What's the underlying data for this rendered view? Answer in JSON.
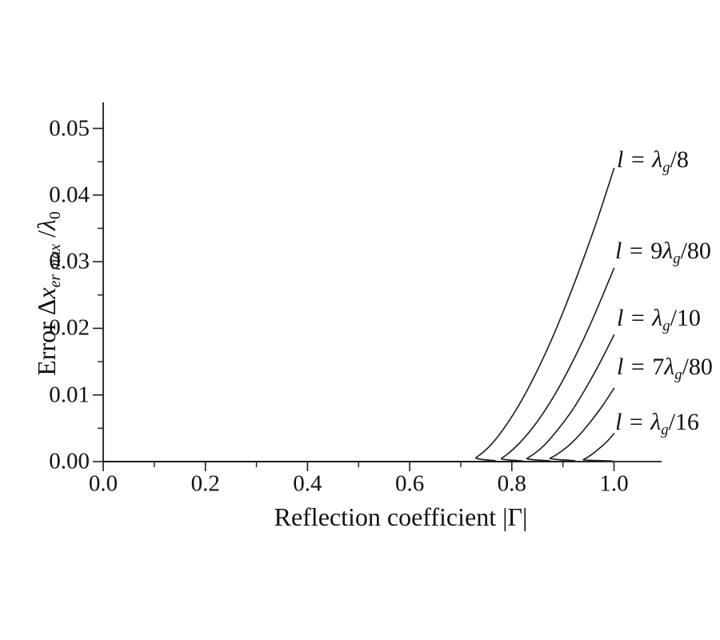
{
  "figure": {
    "background": "#ffffff",
    "line_color": "#1c1c1c"
  },
  "chart_data": {
    "type": "line",
    "title": "",
    "xlabel": "Reflection coefficient |Γ|",
    "ylabel": "Error Δx er max /λ 0",
    "ylabel_parts": {
      "prefix": "Error Δ",
      "var": "x",
      "subscript": "er max",
      "divider": " /",
      "lambda": "λ",
      "lambda_sub": "0"
    },
    "xlim": [
      0,
      1.093
    ],
    "ylim": [
      0,
      0.0539
    ],
    "grid": "off",
    "legend_position": "labels-at-line-ends-right",
    "x_ticks": {
      "major": [
        0.0,
        0.2,
        0.4,
        0.6,
        0.8,
        1.0
      ],
      "minor": [
        0.1,
        0.3,
        0.5,
        0.7,
        0.9
      ],
      "labels": [
        "0.0",
        "0.2",
        "0.4",
        "0.6",
        "0.8",
        "1.0"
      ]
    },
    "y_ticks": {
      "major": [
        0.0,
        0.01,
        0.02,
        0.03,
        0.04,
        0.05
      ],
      "minor": [
        0.005,
        0.015,
        0.025,
        0.035,
        0.045
      ],
      "labels": [
        "0.00",
        "0.01",
        "0.02",
        "0.03",
        "0.04",
        "0.05"
      ]
    },
    "series": [
      {
        "name": "l = λg/8",
        "label": {
          "var": "l",
          "eq": " = ",
          "coef": "",
          "lambda": "λ",
          "sub": "g",
          "slash": "/",
          "den": "8"
        },
        "liftoff_x": 0.71,
        "value_at_1": 0.044,
        "points": [
          [
            0,
            0
          ],
          [
            0.71,
            0
          ],
          [
            0.73,
            0.0006
          ],
          [
            0.76,
            0.0026
          ],
          [
            0.79,
            0.0056
          ],
          [
            0.82,
            0.0093
          ],
          [
            0.85,
            0.0137
          ],
          [
            0.88,
            0.0187
          ],
          [
            0.91,
            0.0243
          ],
          [
            0.94,
            0.0304
          ],
          [
            0.97,
            0.0369
          ],
          [
            1.0,
            0.044
          ]
        ]
      },
      {
        "name": "l = 9λg/80",
        "label": {
          "var": "l",
          "eq": " = ",
          "coef": "9",
          "lambda": "λ",
          "sub": "g",
          "slash": "/",
          "den": "80"
        },
        "liftoff_x": 0.76,
        "value_at_1": 0.029,
        "points": [
          [
            0,
            0
          ],
          [
            0.76,
            0
          ],
          [
            0.78,
            0.0005
          ],
          [
            0.81,
            0.0024
          ],
          [
            0.84,
            0.005
          ],
          [
            0.87,
            0.0083
          ],
          [
            0.9,
            0.0122
          ],
          [
            0.93,
            0.0167
          ],
          [
            0.96,
            0.0217
          ],
          [
            1.0,
            0.029
          ]
        ]
      },
      {
        "name": "l = λg/10",
        "label": {
          "var": "l",
          "eq": " = ",
          "coef": "",
          "lambda": "λ",
          "sub": "g",
          "slash": "/",
          "den": "10"
        },
        "liftoff_x": 0.81,
        "value_at_1": 0.019,
        "points": [
          [
            0,
            0
          ],
          [
            0.81,
            0
          ],
          [
            0.83,
            0.0005
          ],
          [
            0.86,
            0.0022
          ],
          [
            0.89,
            0.0048
          ],
          [
            0.92,
            0.0079
          ],
          [
            0.95,
            0.0117
          ],
          [
            0.975,
            0.0152
          ],
          [
            1.0,
            0.019
          ]
        ]
      },
      {
        "name": "l = 7λg/80",
        "label": {
          "var": "l",
          "eq": " = ",
          "coef": "7",
          "lambda": "λ",
          "sub": "g",
          "slash": "/",
          "den": "80"
        },
        "liftoff_x": 0.855,
        "value_at_1": 0.011,
        "points": [
          [
            0,
            0
          ],
          [
            0.855,
            0
          ],
          [
            0.875,
            0.0005
          ],
          [
            0.9,
            0.0017
          ],
          [
            0.925,
            0.0034
          ],
          [
            0.95,
            0.0056
          ],
          [
            0.975,
            0.0081
          ],
          [
            1.0,
            0.011
          ]
        ]
      },
      {
        "name": "l = λg/16",
        "label": {
          "var": "l",
          "eq": " = ",
          "coef": "",
          "lambda": "λ",
          "sub": "g",
          "slash": "/",
          "den": "16"
        },
        "liftoff_x": 0.925,
        "value_at_1": 0.0042,
        "points": [
          [
            0,
            0
          ],
          [
            0.925,
            0
          ],
          [
            0.94,
            0.0003
          ],
          [
            0.955,
            0.001
          ],
          [
            0.97,
            0.0019
          ],
          [
            0.985,
            0.0029
          ],
          [
            1.0,
            0.0042
          ]
        ]
      }
    ]
  }
}
